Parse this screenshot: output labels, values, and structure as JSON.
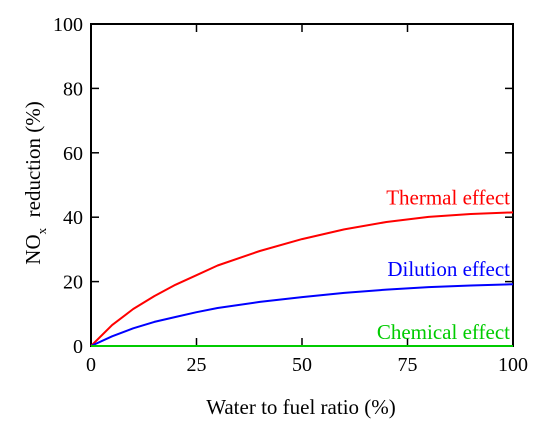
{
  "chart_data": {
    "type": "line",
    "title": "",
    "xlabel": "Water to fuel ratio (%)",
    "ylabel": {
      "main": "NO",
      "subscript": "x",
      "rest": "  reduction (%)"
    },
    "xlim": [
      0,
      100
    ],
    "ylim": [
      0,
      100
    ],
    "x_ticks": [
      "0",
      "25",
      "50",
      "75",
      "100"
    ],
    "y_ticks": [
      "0",
      "20",
      "40",
      "60",
      "80",
      "100"
    ],
    "grid": false,
    "legend": "none",
    "series": [
      {
        "name": "Thermal effect",
        "color": "#ff0000",
        "x": [
          0,
          5,
          10,
          15,
          20,
          25,
          30,
          40,
          50,
          60,
          70,
          80,
          90,
          100
        ],
        "y": [
          0,
          6.5,
          11.5,
          15.5,
          19,
          22,
          25,
          29.5,
          33.2,
          36.2,
          38.5,
          40.1,
          41,
          41.5
        ]
      },
      {
        "name": "Dilution effect",
        "color": "#0000ff",
        "x": [
          0,
          5,
          10,
          15,
          20,
          25,
          30,
          40,
          50,
          60,
          70,
          80,
          90,
          100
        ],
        "y": [
          0,
          3,
          5.5,
          7.5,
          9,
          10.5,
          11.8,
          13.7,
          15.2,
          16.5,
          17.5,
          18.3,
          18.8,
          19.2
        ]
      },
      {
        "name": "Chemical effect",
        "color": "#00cc00",
        "x": [
          0,
          100
        ],
        "y": [
          0,
          0
        ]
      }
    ]
  }
}
